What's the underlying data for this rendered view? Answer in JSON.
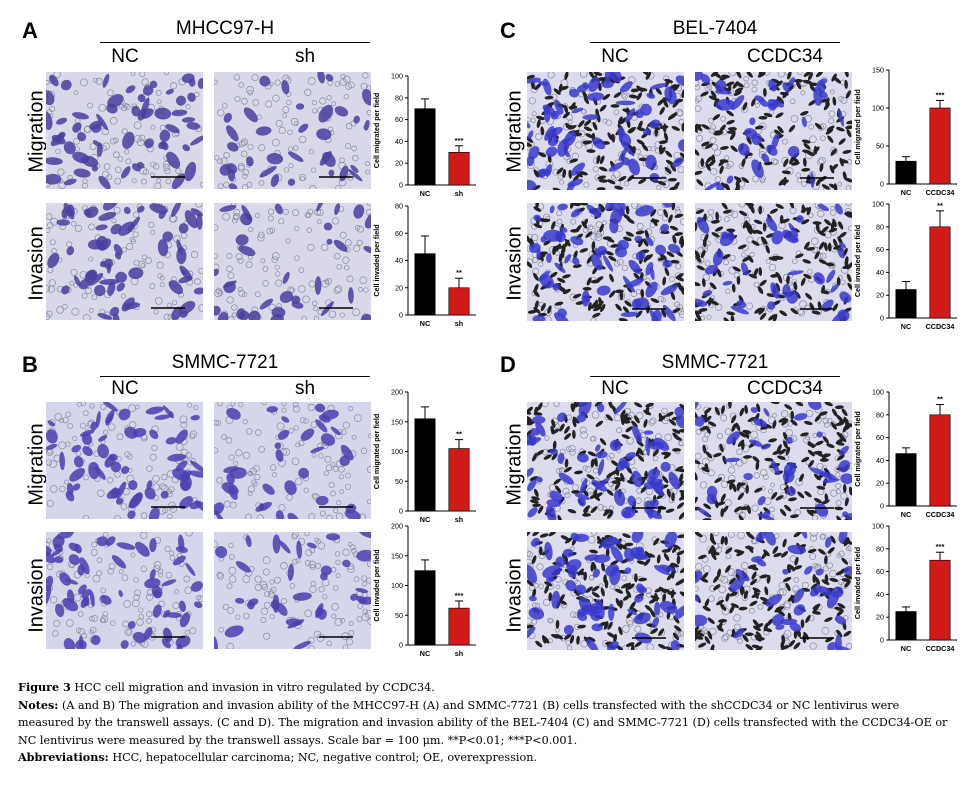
{
  "panels": [
    {
      "id": "A",
      "letter": "A",
      "cell_line": "MHCC97-H",
      "conditions": [
        "NC",
        "sh"
      ],
      "rows": [
        "Migration",
        "Invasion"
      ],
      "stain": "#4a3ea0",
      "bg": "#d9d8e9",
      "charts": [
        {
          "ylabel": "Cell migrated per field",
          "ylim": [
            0,
            100
          ],
          "ticks": [
            0,
            20,
            40,
            60,
            80,
            100
          ],
          "categories": [
            "NC",
            "sh"
          ],
          "values": [
            70,
            30
          ],
          "errors": [
            9,
            6
          ],
          "sig": [
            "",
            "***"
          ]
        },
        {
          "ylabel": "Cell invaded per field",
          "ylim": [
            0,
            80
          ],
          "ticks": [
            0,
            20,
            40,
            60,
            80
          ],
          "categories": [
            "NC",
            "sh"
          ],
          "values": [
            45,
            20
          ],
          "errors": [
            13,
            7
          ],
          "sig": [
            "",
            "**"
          ]
        }
      ]
    },
    {
      "id": "B",
      "letter": "B",
      "cell_line": "SMMC-7721",
      "conditions": [
        "NC",
        "sh"
      ],
      "rows": [
        "Migration",
        "Invasion"
      ],
      "stain": "#4b3fb0",
      "bg": "#d6d6ea",
      "charts": [
        {
          "ylabel": "Cell migrated per field",
          "ylim": [
            0,
            200
          ],
          "ticks": [
            0,
            50,
            100,
            150,
            200
          ],
          "categories": [
            "NC",
            "sh"
          ],
          "values": [
            155,
            105
          ],
          "errors": [
            20,
            15
          ],
          "sig": [
            "",
            "**"
          ]
        },
        {
          "ylabel": "Cell invaded per field",
          "ylim": [
            0,
            200
          ],
          "ticks": [
            0,
            50,
            100,
            150,
            200
          ],
          "categories": [
            "NC",
            "sh"
          ],
          "values": [
            125,
            62
          ],
          "errors": [
            18,
            12
          ],
          "sig": [
            "",
            "***"
          ]
        }
      ]
    },
    {
      "id": "C",
      "letter": "C",
      "cell_line": "BEL-7404",
      "conditions": [
        "NC",
        "CCDC34"
      ],
      "rows": [
        "Migration",
        "Invasion"
      ],
      "stain": "#3a3acf",
      "bg": "#dcdcec",
      "charts": [
        {
          "ylabel": "Cell migrated per field",
          "ylim": [
            0,
            150
          ],
          "ticks": [
            0,
            50,
            100,
            150
          ],
          "categories": [
            "NC",
            "CCDC34"
          ],
          "values": [
            30,
            100
          ],
          "errors": [
            6,
            10
          ],
          "sig": [
            "",
            "***"
          ]
        },
        {
          "ylabel": "Cell invaded per field",
          "ylim": [
            0,
            100
          ],
          "ticks": [
            0,
            20,
            40,
            60,
            80,
            100
          ],
          "categories": [
            "NC",
            "CCDC34"
          ],
          "values": [
            25,
            80
          ],
          "errors": [
            7,
            14
          ],
          "sig": [
            "",
            "**"
          ]
        }
      ]
    },
    {
      "id": "D",
      "letter": "D",
      "cell_line": "SMMC-7721",
      "conditions": [
        "NC",
        "CCDC34"
      ],
      "rows": [
        "Migration",
        "Invasion"
      ],
      "stain": "#3a3acf",
      "bg": "#dcdcec",
      "charts": [
        {
          "ylabel": "Cell migrated per field",
          "ylim": [
            0,
            100
          ],
          "ticks": [
            0,
            20,
            40,
            60,
            80,
            100
          ],
          "categories": [
            "NC",
            "CCDC34"
          ],
          "values": [
            46,
            80
          ],
          "errors": [
            5,
            9
          ],
          "sig": [
            "",
            "**"
          ]
        },
        {
          "ylabel": "Cell invaded per field",
          "ylim": [
            0,
            100
          ],
          "ticks": [
            0,
            20,
            40,
            60,
            80,
            100
          ],
          "categories": [
            "NC",
            "CCDC34"
          ],
          "values": [
            25,
            70
          ],
          "errors": [
            4,
            7
          ],
          "sig": [
            "",
            "***"
          ]
        }
      ]
    }
  ],
  "colors": {
    "control_bar": "#000000",
    "treated_bar": "#d11a1a"
  },
  "caption": {
    "figure_label": "Figure 3",
    "figure_title": "HCC cell migration and invasion in vitro regulated by CCDC34.",
    "notes_label": "Notes:",
    "notes_text": "(A and B) The migration and invasion ability of the MHCC97-H (A) and SMMC-7721 (B) cells transfected with the shCCDC34 or NC lentivirus were measured by the transwell assays. (C and D). The migration and invasion ability of the BEL-7404 (C) and SMMC-7721 (D) cells transfected with the CCDC34-OE or NC lentivirus were measured by the transwell assays. Scale bar = 100 μm. **P<0.01; ***P<0.001.",
    "abbrev_label": "Abbreviations:",
    "abbrev_text": "HCC, hepatocellular carcinoma; NC, negative control; OE, overexpression."
  }
}
